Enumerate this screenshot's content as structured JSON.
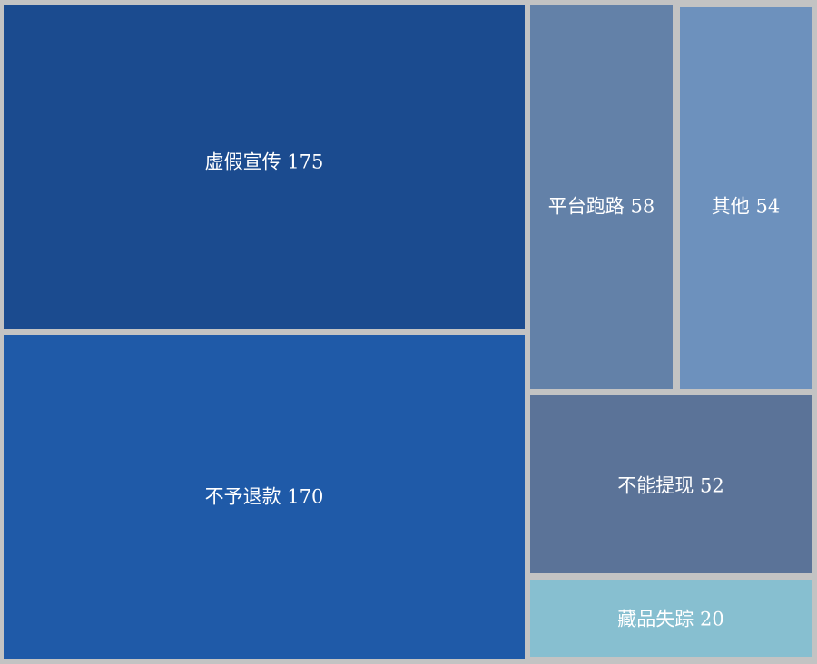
{
  "chart_data": {
    "type": "treemap",
    "items": [
      {
        "name": "虚假宣传",
        "value": 175,
        "color": "#1b4b8f"
      },
      {
        "name": "不予退款",
        "value": 170,
        "color": "#1f5aa8"
      },
      {
        "name": "平台跑路",
        "value": 58,
        "color": "#6381a8"
      },
      {
        "name": "其他",
        "value": 54,
        "color": "#6d91bd"
      },
      {
        "name": "不能提现",
        "value": 52,
        "color": "#5b7398"
      },
      {
        "name": "藏品失踪",
        "value": 20,
        "color": "#87bfd0"
      }
    ]
  }
}
